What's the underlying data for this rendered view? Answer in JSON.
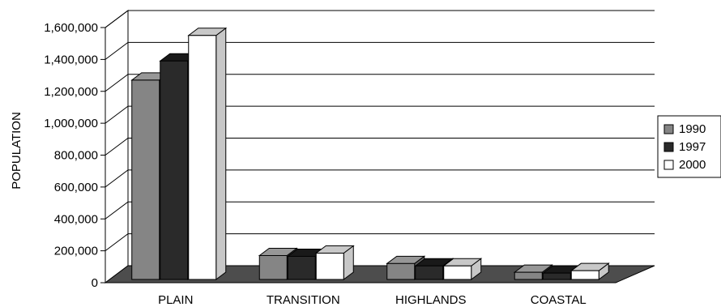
{
  "chart_data": {
    "type": "bar",
    "style": "3d-clustered",
    "categories": [
      "PLAIN",
      "TRANSITION",
      "HIGHLANDS",
      "COASTAL"
    ],
    "series": [
      {
        "name": "1990",
        "color": "#858585",
        "values": [
          1250000,
          150000,
          100000,
          45000
        ]
      },
      {
        "name": "1997",
        "color": "#2a2a2a",
        "values": [
          1370000,
          145000,
          85000,
          40000
        ]
      },
      {
        "name": "2000",
        "color": "#ffffff",
        "values": [
          1530000,
          165000,
          85000,
          55000
        ]
      }
    ],
    "ylabel": "POPULATION",
    "xlabel": "",
    "ylim": [
      0,
      1600000
    ],
    "yticks": [
      0,
      200000,
      400000,
      600000,
      800000,
      1000000,
      1200000,
      1400000,
      1600000
    ],
    "ytick_labels": [
      "0",
      "200,000",
      "400,000",
      "600,000",
      "800,000",
      "1,000,000",
      "1,200,000",
      "1,400,000",
      "1,600,000"
    ],
    "grid": true,
    "legend": "right",
    "colors": {
      "floor": "#4d4d4d",
      "wall": "#ffffff",
      "grid": "#000000"
    }
  }
}
